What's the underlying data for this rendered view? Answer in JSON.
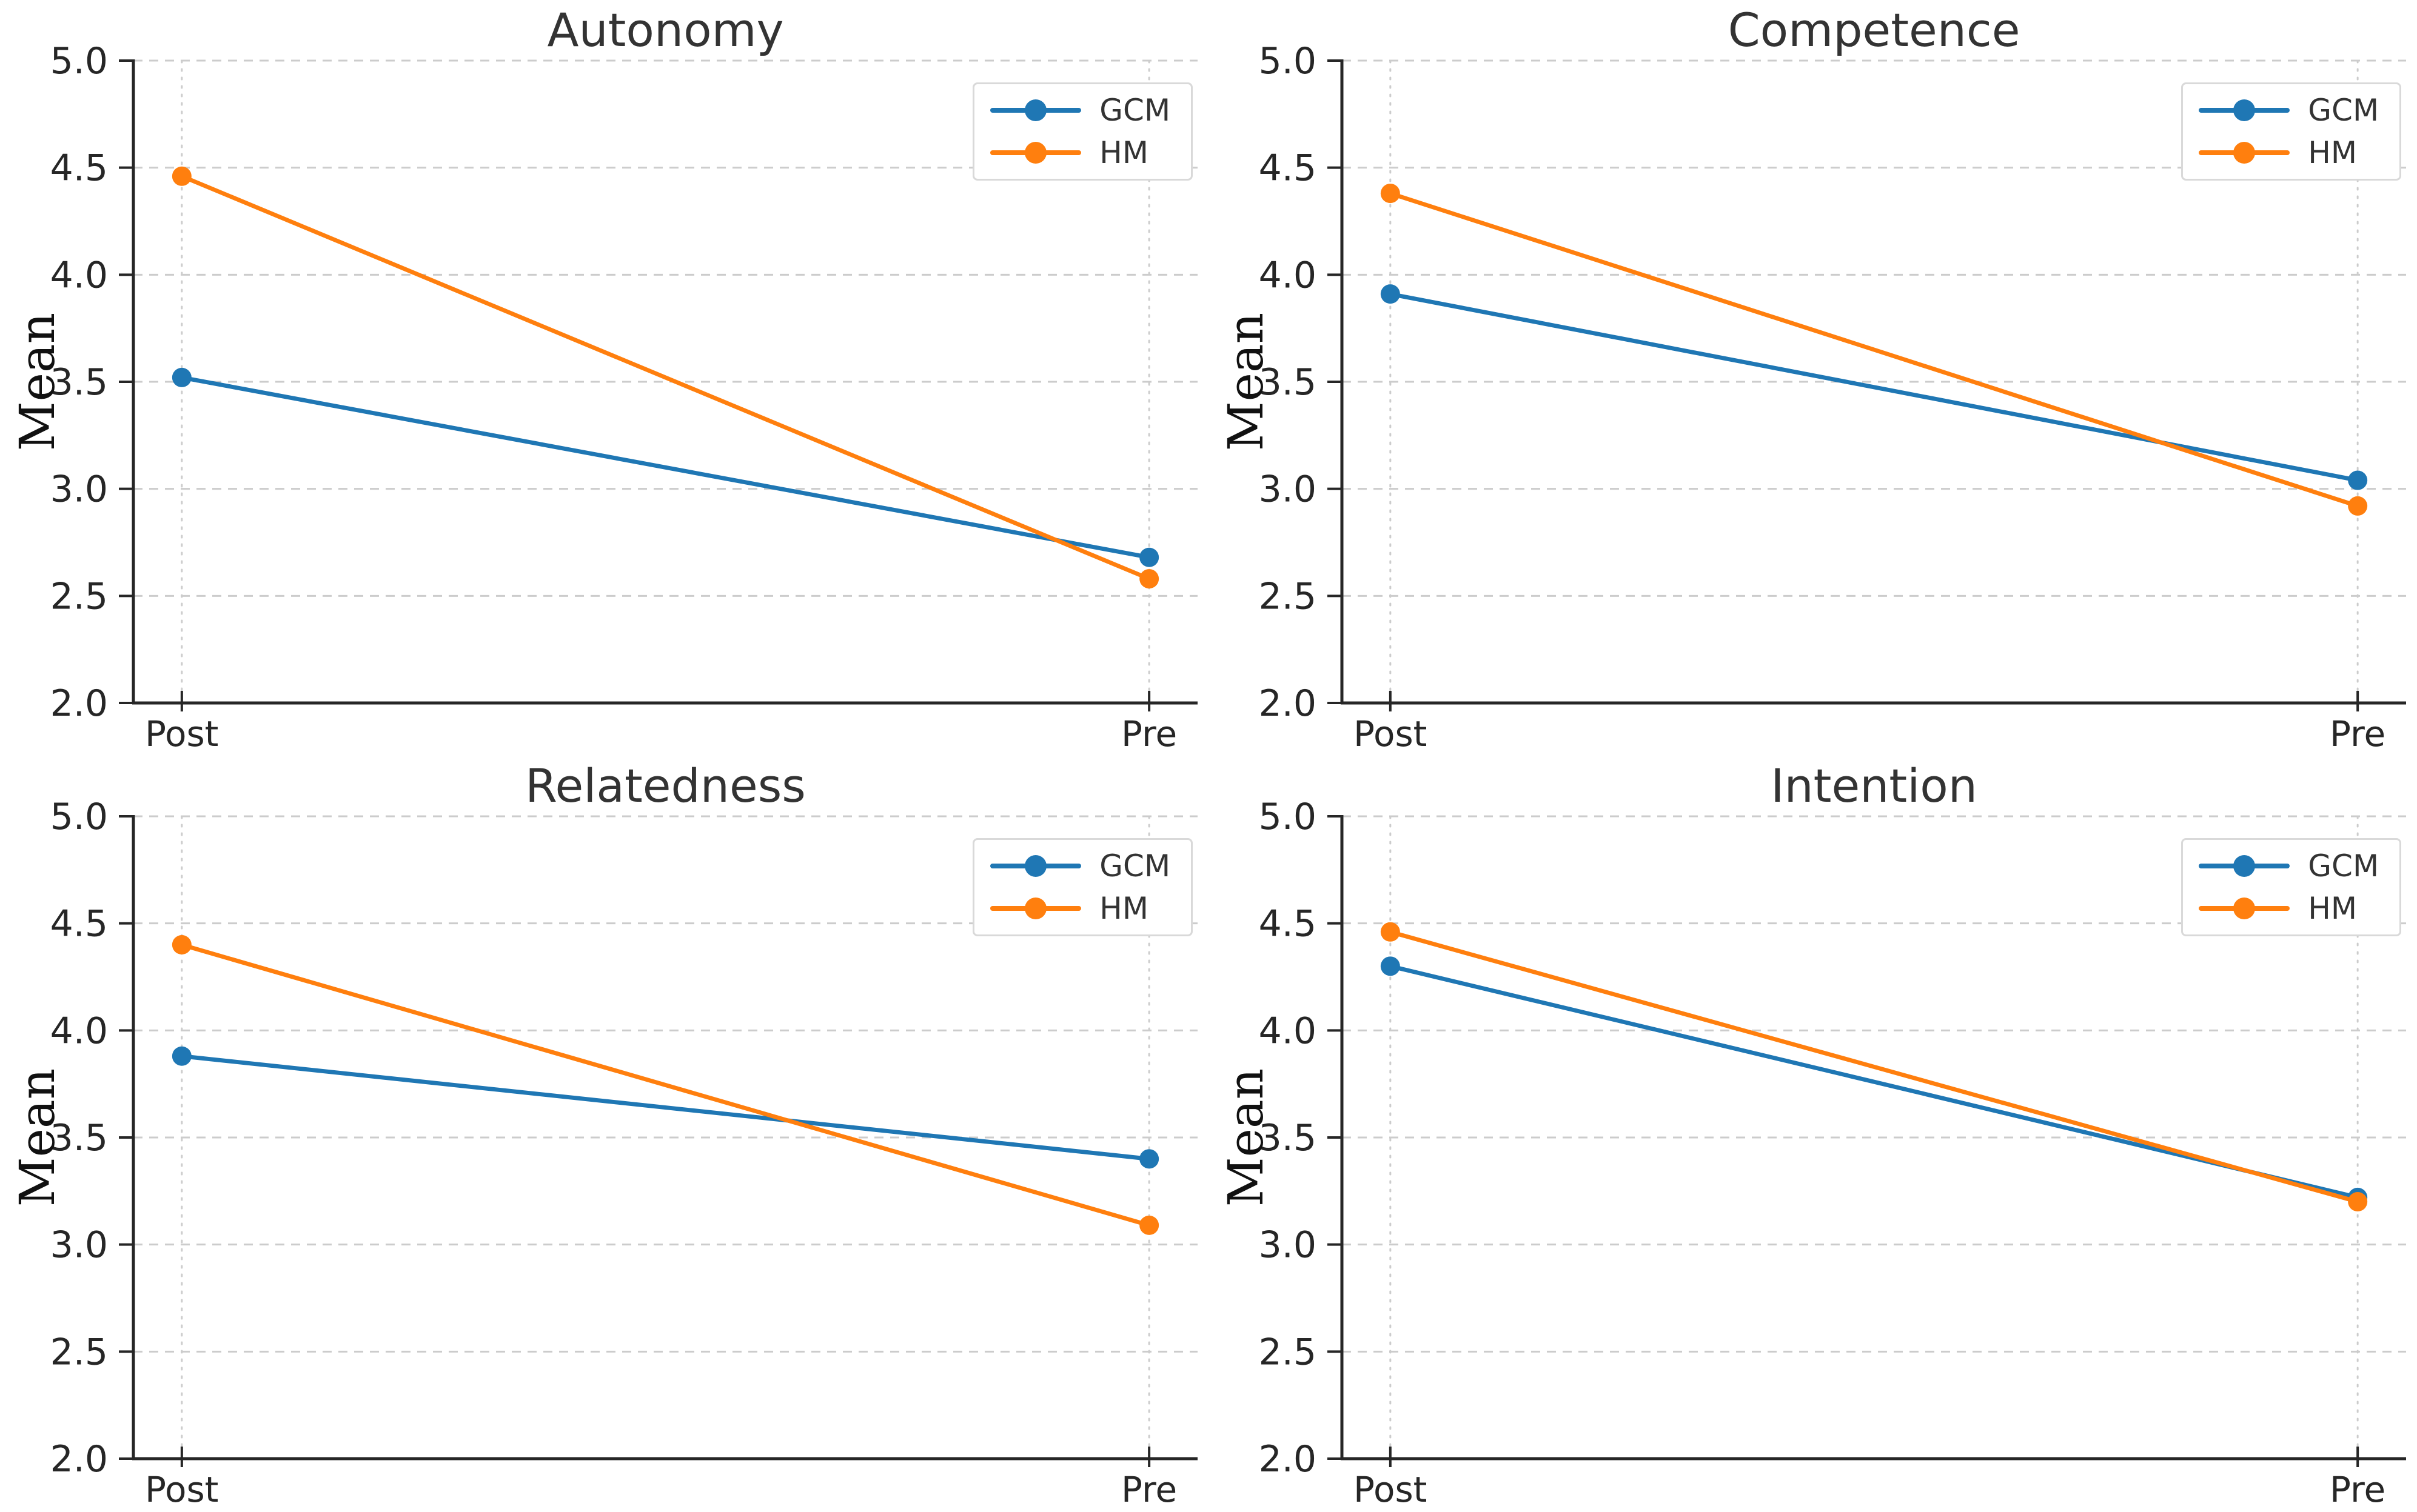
{
  "figure": {
    "background": "#ffffff",
    "title_color": "#333333",
    "tick_label_color": "#262626",
    "spine_color": "#262626",
    "grid_color": "#cccccc",
    "legend_border_color": "#d9d9d9",
    "gcm_color": "#1f77b4",
    "hm_color": "#ff7f0e"
  },
  "chart_data": [
    {
      "type": "line",
      "title": "Autonomy",
      "categories": [
        "Post",
        "Pre"
      ],
      "series": [
        {
          "name": "GCM",
          "values": [
            3.52,
            2.68
          ],
          "color": "#1f77b4"
        },
        {
          "name": "HM",
          "values": [
            4.46,
            2.58
          ],
          "color": "#ff7f0e"
        }
      ],
      "xlabel": "",
      "ylabel": "Mean",
      "ylim": [
        2.0,
        5.0
      ],
      "yticks": [
        5.0,
        4.5,
        4.0,
        3.5,
        3.0,
        2.5,
        2.0
      ],
      "grid": true,
      "legend_position": "upper right"
    },
    {
      "type": "line",
      "title": "Competence",
      "categories": [
        "Post",
        "Pre"
      ],
      "series": [
        {
          "name": "GCM",
          "values": [
            3.91,
            3.04
          ],
          "color": "#1f77b4"
        },
        {
          "name": "HM",
          "values": [
            4.38,
            2.92
          ],
          "color": "#ff7f0e"
        }
      ],
      "xlabel": "",
      "ylabel": "Mean",
      "ylim": [
        2.0,
        5.0
      ],
      "yticks": [
        5.0,
        4.5,
        4.0,
        3.5,
        3.0,
        2.5,
        2.0
      ],
      "grid": true,
      "legend_position": "upper right"
    },
    {
      "type": "line",
      "title": "Relatedness",
      "categories": [
        "Post",
        "Pre"
      ],
      "series": [
        {
          "name": "GCM",
          "values": [
            3.88,
            3.4
          ],
          "color": "#1f77b4"
        },
        {
          "name": "HM",
          "values": [
            4.4,
            3.09
          ],
          "color": "#ff7f0e"
        }
      ],
      "xlabel": "",
      "ylabel": "Mean",
      "ylim": [
        2.0,
        5.0
      ],
      "yticks": [
        5.0,
        4.5,
        4.0,
        3.5,
        3.0,
        2.5,
        2.0
      ],
      "grid": true,
      "legend_position": "upper right"
    },
    {
      "type": "line",
      "title": "Intention",
      "categories": [
        "Post",
        "Pre"
      ],
      "series": [
        {
          "name": "GCM",
          "values": [
            4.3,
            3.22
          ],
          "color": "#1f77b4"
        },
        {
          "name": "HM",
          "values": [
            4.46,
            3.2
          ],
          "color": "#ff7f0e"
        }
      ],
      "xlabel": "",
      "ylabel": "Mean",
      "ylim": [
        2.0,
        5.0
      ],
      "yticks": [
        5.0,
        4.5,
        4.0,
        3.5,
        3.0,
        2.5,
        2.0
      ],
      "grid": true,
      "legend_position": "upper right"
    }
  ]
}
